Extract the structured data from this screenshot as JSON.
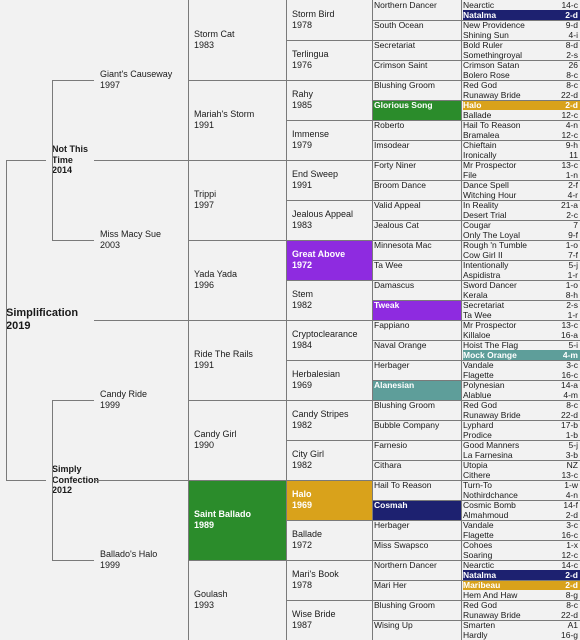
{
  "colors": {
    "background": "#f2f2f2",
    "line": "#7a7a7a",
    "green": "#2b8c2b",
    "purple": "#8e2be0",
    "gold": "#d9a21b",
    "navy": "#1d2170",
    "teal": "#5e9e9a"
  },
  "pedigree": {
    "subject": {
      "name": "Simplification",
      "year": "2019"
    },
    "sire": {
      "name": "Not This Time",
      "year": "2014"
    },
    "dam": {
      "name": "Simply Confection",
      "year": "2012"
    },
    "gen2": [
      {
        "name": "Giant's Causeway",
        "year": "1997"
      },
      {
        "name": "Miss Macy Sue",
        "year": "2003"
      },
      {
        "name": "Candy Ride",
        "year": "1999"
      },
      {
        "name": "Ballado's Halo",
        "year": "1999"
      }
    ],
    "gen3": [
      {
        "name": "Storm Cat",
        "year": "1983"
      },
      {
        "name": "Mariah's Storm",
        "year": "1991"
      },
      {
        "name": "Trippi",
        "year": "1997"
      },
      {
        "name": "Yada Yada",
        "year": "1996"
      },
      {
        "name": "Ride The Rails",
        "year": "1991"
      },
      {
        "name": "Candy Girl",
        "year": "1990"
      },
      {
        "name": "Saint Ballado",
        "year": "1989",
        "highlight": "green"
      },
      {
        "name": "Goulash",
        "year": "1993"
      }
    ],
    "gen4": [
      {
        "name": "Storm Bird",
        "year": "1978"
      },
      {
        "name": "Terlingua",
        "year": "1976"
      },
      {
        "name": "Rahy",
        "year": "1985"
      },
      {
        "name": "Immense",
        "year": "1979"
      },
      {
        "name": "End Sweep",
        "year": "1991"
      },
      {
        "name": "Jealous Appeal",
        "year": "1983"
      },
      {
        "name": "Great Above",
        "year": "1972",
        "highlight": "purple"
      },
      {
        "name": "Stem",
        "year": "1982"
      },
      {
        "name": "Cryptoclearance",
        "year": "1984"
      },
      {
        "name": "Herbalesian",
        "year": "1969"
      },
      {
        "name": "Candy Stripes",
        "year": "1982"
      },
      {
        "name": "City Girl",
        "year": "1982"
      },
      {
        "name": "Halo",
        "year": "1969",
        "highlight": "gold"
      },
      {
        "name": "Ballade",
        "year": "1972"
      },
      {
        "name": "Mari's Book",
        "year": "1978"
      },
      {
        "name": "Wise Bride",
        "year": "1987"
      }
    ],
    "gen5": [
      {
        "name": "Northern Dancer"
      },
      {
        "name": "South Ocean"
      },
      {
        "name": "Secretariat"
      },
      {
        "name": "Crimson Saint"
      },
      {
        "name": "Blushing Groom"
      },
      {
        "name": "Glorious Song",
        "highlight": "green"
      },
      {
        "name": "Roberto"
      },
      {
        "name": "Imsodear"
      },
      {
        "name": "Forty Niner"
      },
      {
        "name": "Broom Dance"
      },
      {
        "name": "Valid Appeal"
      },
      {
        "name": "Jealous Cat"
      },
      {
        "name": "Minnesota Mac"
      },
      {
        "name": "Ta Wee"
      },
      {
        "name": "Damascus"
      },
      {
        "name": "Tweak",
        "highlight": "purple"
      },
      {
        "name": "Fappiano"
      },
      {
        "name": "Naval Orange"
      },
      {
        "name": "Herbager"
      },
      {
        "name": "Alanesian",
        "highlight": "teal"
      },
      {
        "name": "Blushing Groom"
      },
      {
        "name": "Bubble Company"
      },
      {
        "name": "Farnesio"
      },
      {
        "name": "Cithara"
      },
      {
        "name": "Hail To Reason"
      },
      {
        "name": "Cosmah",
        "highlight": "navy"
      },
      {
        "name": "Herbager"
      },
      {
        "name": "Miss Swapsco"
      },
      {
        "name": "Northern Dancer"
      },
      {
        "name": "Mari Her"
      },
      {
        "name": "Blushing Groom"
      },
      {
        "name": "Wising Up"
      }
    ],
    "gen6": [
      {
        "name": "Nearctic",
        "family": "14-c"
      },
      {
        "name": "Natalma",
        "family": "2-d",
        "highlight": "navy"
      },
      {
        "name": "New Providence",
        "family": "9-d"
      },
      {
        "name": "Shining Sun",
        "family": "4-i"
      },
      {
        "name": "Bold Ruler",
        "family": "8-d"
      },
      {
        "name": "Somethingroyal",
        "family": "2-s"
      },
      {
        "name": "Crimson Satan",
        "family": "26"
      },
      {
        "name": "Bolero Rose",
        "family": "8-c"
      },
      {
        "name": "Red God",
        "family": "8-c"
      },
      {
        "name": "Runaway Bride",
        "family": "22-d"
      },
      {
        "name": "Halo",
        "family": "2-d",
        "highlight": "gold"
      },
      {
        "name": "Ballade",
        "family": "12-c"
      },
      {
        "name": "Hail To Reason",
        "family": "4-n"
      },
      {
        "name": "Bramalea",
        "family": "12-c"
      },
      {
        "name": "Chieftain",
        "family": "9-h"
      },
      {
        "name": "Ironically",
        "family": "11"
      },
      {
        "name": "Mr Prospector",
        "family": "13-c"
      },
      {
        "name": "File",
        "family": "1-n"
      },
      {
        "name": "Dance Spell",
        "family": "2-f"
      },
      {
        "name": "Witching Hour",
        "family": "4-r"
      },
      {
        "name": "In Reality",
        "family": "21-a"
      },
      {
        "name": "Desert Trial",
        "family": "2-c"
      },
      {
        "name": "Cougar",
        "family": "7"
      },
      {
        "name": "Only The Loyal",
        "family": "9-f"
      },
      {
        "name": "Rough 'n Tumble",
        "family": "1-o"
      },
      {
        "name": "Cow Girl II",
        "family": "7-f"
      },
      {
        "name": "Intentionally",
        "family": "5-j"
      },
      {
        "name": "Aspidistra",
        "family": "1-r"
      },
      {
        "name": "Sword Dancer",
        "family": "1-o"
      },
      {
        "name": "Kerala",
        "family": "8-h"
      },
      {
        "name": "Secretariat",
        "family": "2-s"
      },
      {
        "name": "Ta Wee",
        "family": "1-r"
      },
      {
        "name": "Mr Prospector",
        "family": "13-c"
      },
      {
        "name": "Killaloe",
        "family": "16-a"
      },
      {
        "name": "Hoist The Flag",
        "family": "5-i"
      },
      {
        "name": "Mock Orange",
        "family": "4-m",
        "highlight": "teal"
      },
      {
        "name": "Vandale",
        "family": "3-c"
      },
      {
        "name": "Flagette",
        "family": "16-c"
      },
      {
        "name": "Polynesian",
        "family": "14-a"
      },
      {
        "name": "Alablue",
        "family": "4-m"
      },
      {
        "name": "Red God",
        "family": "8-c"
      },
      {
        "name": "Runaway Bride",
        "family": "22-d"
      },
      {
        "name": "Lyphard",
        "family": "17-b"
      },
      {
        "name": "Prodice",
        "family": "1-b"
      },
      {
        "name": "Good Manners",
        "family": "5-j"
      },
      {
        "name": "La Farnesina",
        "family": "3-b"
      },
      {
        "name": "Utopia",
        "family": "NZ"
      },
      {
        "name": "Cithere",
        "family": "13-c"
      },
      {
        "name": "Turn-To",
        "family": "1-w"
      },
      {
        "name": "Nothirdchance",
        "family": "4-n"
      },
      {
        "name": "Cosmic Bomb",
        "family": "14-f"
      },
      {
        "name": "Almahmoud",
        "family": "2-d"
      },
      {
        "name": "Vandale",
        "family": "3-c"
      },
      {
        "name": "Flagette",
        "family": "16-c"
      },
      {
        "name": "Cohoes",
        "family": "1-x"
      },
      {
        "name": "Soaring",
        "family": "12-c"
      },
      {
        "name": "Nearctic",
        "family": "14-c"
      },
      {
        "name": "Natalma",
        "family": "2-d",
        "highlight": "navy"
      },
      {
        "name": "Maribeau",
        "family": "2-d",
        "highlight": "gold"
      },
      {
        "name": "Hem And Haw",
        "family": "8-g"
      },
      {
        "name": "Red God",
        "family": "8-c"
      },
      {
        "name": "Runaway Bride",
        "family": "22-d"
      },
      {
        "name": "Smarten",
        "family": "A1"
      },
      {
        "name": "Hardly",
        "family": "16-g"
      }
    ]
  }
}
